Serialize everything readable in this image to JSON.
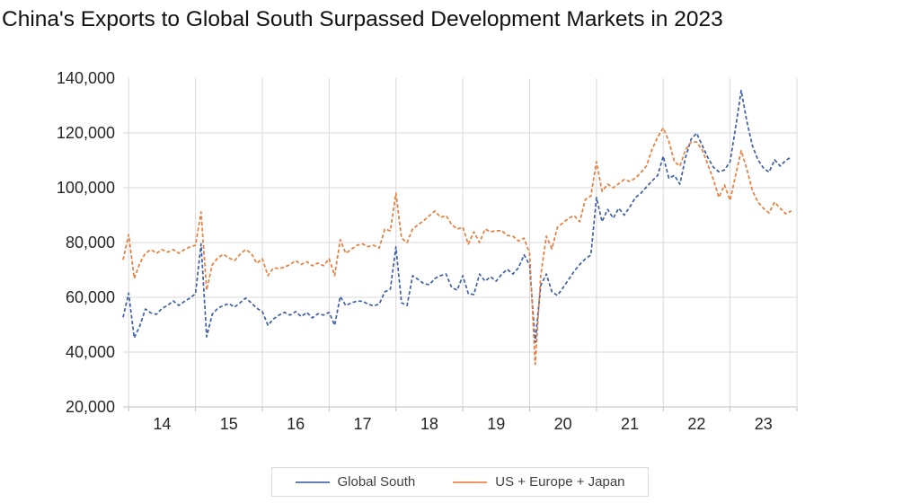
{
  "title": "China's Exports to Global South Surpassed Development Markets in 2023",
  "colors": {
    "global_south": "#3e5fa8",
    "developed_markets": "#e87c3a",
    "gridline": "#d9d9d9",
    "axis_line": "#bfbfbf",
    "tick_text": "#262626"
  },
  "legend": {
    "position": "bottom-center"
  },
  "chart_data": {
    "type": "line",
    "title": "China's Exports to Global South Surpassed Development Markets in 2023",
    "x_unit": "months",
    "frequency": "monthly",
    "total_month_span": 121,
    "months_before_first_year_gridline": 1,
    "months_per_year": 12,
    "year_tick_labels": [
      "14",
      "15",
      "16",
      "17",
      "18",
      "19",
      "20",
      "21",
      "22",
      "23"
    ],
    "y_ticks": [
      20000,
      40000,
      60000,
      80000,
      100000,
      120000,
      140000
    ],
    "y_tick_labels": [
      "20,000",
      "40,000",
      "60,000",
      "80,000",
      "100,000",
      "120,000",
      "140,000"
    ],
    "ylim": [
      20000,
      140000
    ],
    "grid": true,
    "line_style": "dashed",
    "legend_position": "bottom-center",
    "series": [
      {
        "name": "Global South",
        "color": "#3e5fa8",
        "values": [
          52700,
          61500,
          45200,
          49500,
          55700,
          54300,
          53800,
          56000,
          57000,
          58700,
          57000,
          58500,
          59700,
          61300,
          79500,
          45600,
          53800,
          56000,
          57000,
          57700,
          56400,
          58000,
          59700,
          58000,
          56000,
          54800,
          49800,
          52100,
          53500,
          54500,
          53500,
          54800,
          53000,
          54500,
          52500,
          54000,
          53500,
          54500,
          49800,
          60300,
          57000,
          58000,
          58600,
          58600,
          57500,
          56900,
          57500,
          62000,
          63000,
          78400,
          58000,
          57000,
          67900,
          66500,
          65000,
          64600,
          66900,
          67900,
          68500,
          63600,
          62600,
          67900,
          61300,
          61000,
          68500,
          65900,
          67500,
          65900,
          68500,
          70200,
          68500,
          70800,
          75500,
          71800,
          43500,
          64300,
          68500,
          62000,
          60700,
          63500,
          66500,
          69500,
          72000,
          74000,
          75500,
          96400,
          87600,
          92100,
          88900,
          92500,
          90000,
          93000,
          96400,
          98000,
          100300,
          102500,
          104500,
          111500,
          103500,
          104500,
          101300,
          111000,
          117700,
          119900,
          115400,
          111000,
          107500,
          105800,
          106500,
          109500,
          122000,
          135500,
          124300,
          115400,
          110200,
          107200,
          105700,
          110200,
          107900,
          110000,
          111200
        ]
      },
      {
        "name": "US + Europe + Japan",
        "color": "#e87c3a",
        "values": [
          73700,
          82900,
          66900,
          72400,
          76100,
          77400,
          76100,
          77400,
          76500,
          77400,
          76100,
          77400,
          78400,
          79000,
          91100,
          62600,
          71800,
          74400,
          75700,
          74400,
          73400,
          75700,
          77400,
          76100,
          72400,
          74100,
          67900,
          70800,
          70500,
          71000,
          72000,
          73400,
          72000,
          73000,
          71500,
          72500,
          71500,
          74100,
          67900,
          81000,
          76100,
          77500,
          79000,
          79500,
          78500,
          79000,
          78000,
          84900,
          84300,
          98000,
          81600,
          80000,
          85000,
          86500,
          88000,
          89800,
          91500,
          89200,
          89800,
          86600,
          84900,
          85600,
          79400,
          83900,
          80000,
          84900,
          83900,
          84300,
          84300,
          82600,
          82300,
          80600,
          81600,
          76000,
          35500,
          68000,
          82300,
          77700,
          85600,
          87200,
          88900,
          89800,
          87600,
          95700,
          97000,
          109500,
          98700,
          101300,
          100000,
          101500,
          103000,
          102300,
          103500,
          105500,
          108000,
          114000,
          118500,
          121800,
          117000,
          109500,
          107900,
          113800,
          116700,
          116700,
          113800,
          108500,
          103000,
          96500,
          101000,
          95400,
          104600,
          113500,
          106900,
          99000,
          94800,
          92500,
          90800,
          94800,
          92500,
          90500,
          91500
        ]
      }
    ]
  }
}
